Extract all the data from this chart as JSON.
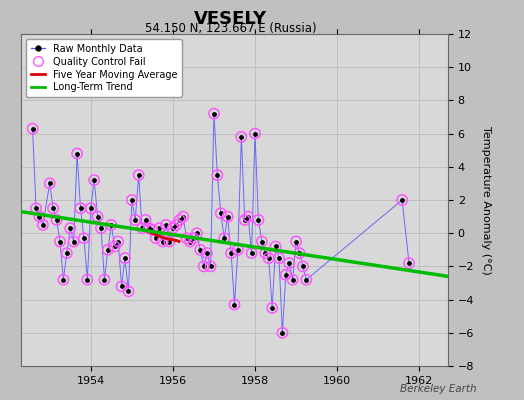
{
  "title": "VESELY",
  "subtitle": "54.150 N, 123.667 E (Russia)",
  "ylabel": "Temperature Anomaly (°C)",
  "watermark": "Berkeley Earth",
  "xlim": [
    1952.3,
    1962.7
  ],
  "ylim": [
    -8,
    12
  ],
  "yticks": [
    -8,
    -6,
    -4,
    -2,
    0,
    2,
    4,
    6,
    8,
    10,
    12
  ],
  "xticks": [
    1954,
    1956,
    1958,
    1960,
    1962
  ],
  "fig_bg": "#c0c0c0",
  "plot_bg": "#d8d8d8",
  "raw_x": [
    1952.583,
    1952.667,
    1952.75,
    1952.833,
    1953.0,
    1953.083,
    1953.167,
    1953.25,
    1953.333,
    1953.417,
    1953.5,
    1953.583,
    1953.667,
    1953.75,
    1953.833,
    1953.917,
    1954.0,
    1954.083,
    1954.167,
    1954.25,
    1954.333,
    1954.417,
    1954.5,
    1954.583,
    1954.667,
    1954.75,
    1954.833,
    1954.917,
    1955.0,
    1955.083,
    1955.167,
    1955.25,
    1955.333,
    1955.417,
    1955.5,
    1955.583,
    1955.667,
    1955.75,
    1955.833,
    1955.917,
    1956.0,
    1956.083,
    1956.167,
    1956.25,
    1956.333,
    1956.417,
    1956.5,
    1956.583,
    1956.667,
    1956.75,
    1956.833,
    1956.917,
    1957.0,
    1957.083,
    1957.167,
    1957.25,
    1957.333,
    1957.417,
    1957.5,
    1957.583,
    1957.667,
    1957.75,
    1957.833,
    1957.917,
    1958.0,
    1958.083,
    1958.167,
    1958.25,
    1958.333,
    1958.417,
    1958.5,
    1958.583,
    1958.667,
    1958.75,
    1958.833,
    1958.917,
    1959.0,
    1959.083,
    1959.167,
    1959.25,
    1961.583,
    1961.75
  ],
  "raw_y": [
    6.3,
    1.5,
    1.0,
    0.5,
    3.0,
    1.5,
    0.8,
    -0.5,
    -2.8,
    -1.2,
    0.3,
    -0.5,
    4.8,
    1.5,
    -0.3,
    -2.8,
    1.5,
    3.2,
    1.0,
    0.3,
    -2.8,
    -1.0,
    0.5,
    -0.8,
    -0.5,
    -3.2,
    -1.5,
    -3.5,
    2.0,
    0.8,
    3.5,
    0.3,
    0.8,
    0.3,
    0.2,
    -0.3,
    0.3,
    -0.5,
    0.5,
    -0.5,
    0.3,
    0.5,
    0.8,
    1.0,
    -0.3,
    -0.5,
    -0.3,
    0.0,
    -1.0,
    -2.0,
    -1.2,
    -2.0,
    7.2,
    3.5,
    1.2,
    -0.3,
    1.0,
    -1.2,
    -4.3,
    -1.0,
    5.8,
    0.8,
    1.0,
    -1.2,
    6.0,
    0.8,
    -0.5,
    -1.2,
    -1.5,
    -4.5,
    -0.8,
    -1.5,
    -6.0,
    -2.5,
    -1.8,
    -2.8,
    -0.5,
    -1.2,
    -2.0,
    -2.8,
    2.0,
    -1.8
  ],
  "qc_fail_x": [
    1952.583,
    1952.667,
    1952.75,
    1952.833,
    1953.0,
    1953.083,
    1953.167,
    1953.25,
    1953.333,
    1953.417,
    1953.5,
    1953.583,
    1953.667,
    1953.75,
    1953.833,
    1953.917,
    1954.0,
    1954.083,
    1954.167,
    1954.25,
    1954.333,
    1954.417,
    1954.5,
    1954.583,
    1954.667,
    1954.75,
    1954.833,
    1954.917,
    1955.0,
    1955.083,
    1955.167,
    1955.25,
    1955.333,
    1955.417,
    1955.5,
    1955.583,
    1955.667,
    1955.75,
    1955.833,
    1955.917,
    1956.0,
    1956.083,
    1956.167,
    1956.25,
    1956.333,
    1956.417,
    1956.5,
    1956.583,
    1956.667,
    1956.75,
    1956.833,
    1956.917,
    1957.0,
    1957.083,
    1957.167,
    1957.25,
    1957.333,
    1957.417,
    1957.5,
    1957.583,
    1957.667,
    1957.75,
    1957.833,
    1957.917,
    1958.0,
    1958.083,
    1958.167,
    1958.25,
    1958.333,
    1958.417,
    1958.5,
    1958.583,
    1958.667,
    1958.75,
    1958.833,
    1958.917,
    1959.0,
    1959.083,
    1959.167,
    1959.25,
    1961.583,
    1961.75
  ],
  "qc_fail_y": [
    6.3,
    1.5,
    1.0,
    0.5,
    3.0,
    1.5,
    0.8,
    -0.5,
    -2.8,
    -1.2,
    0.3,
    -0.5,
    4.8,
    1.5,
    -0.3,
    -2.8,
    1.5,
    3.2,
    1.0,
    0.3,
    -2.8,
    -1.0,
    0.5,
    -0.8,
    -0.5,
    -3.2,
    -1.5,
    -3.5,
    2.0,
    0.8,
    3.5,
    0.3,
    0.8,
    0.3,
    0.2,
    -0.3,
    0.3,
    -0.5,
    0.5,
    -0.5,
    0.3,
    0.5,
    0.8,
    1.0,
    -0.3,
    -0.5,
    -0.3,
    0.0,
    -1.0,
    -2.0,
    -1.2,
    -2.0,
    7.2,
    3.5,
    1.2,
    -0.3,
    1.0,
    -1.2,
    -4.3,
    -1.0,
    5.8,
    0.8,
    1.0,
    -1.2,
    6.0,
    0.8,
    -0.5,
    -1.2,
    -1.5,
    -4.5,
    -0.8,
    -1.5,
    -6.0,
    -2.5,
    -1.8,
    -2.8,
    -0.5,
    -1.2,
    -2.0,
    -2.8,
    2.0,
    -1.8
  ],
  "moving_avg_x": [
    1955.4,
    1955.5,
    1955.6,
    1955.7,
    1955.8,
    1955.9,
    1956.0,
    1956.1,
    1956.15
  ],
  "moving_avg_y": [
    0.1,
    0.0,
    -0.1,
    -0.2,
    -0.3,
    -0.35,
    -0.4,
    -0.45,
    -0.5
  ],
  "trend_x": [
    1952.3,
    1962.7
  ],
  "trend_y": [
    1.3,
    -2.6
  ],
  "line_color": "#5555ff",
  "dot_color": "#000000",
  "qc_color": "#ff55ff",
  "moving_avg_color": "#dd0000",
  "trend_color": "#00bb00",
  "grid_color": "#bbbbbb"
}
